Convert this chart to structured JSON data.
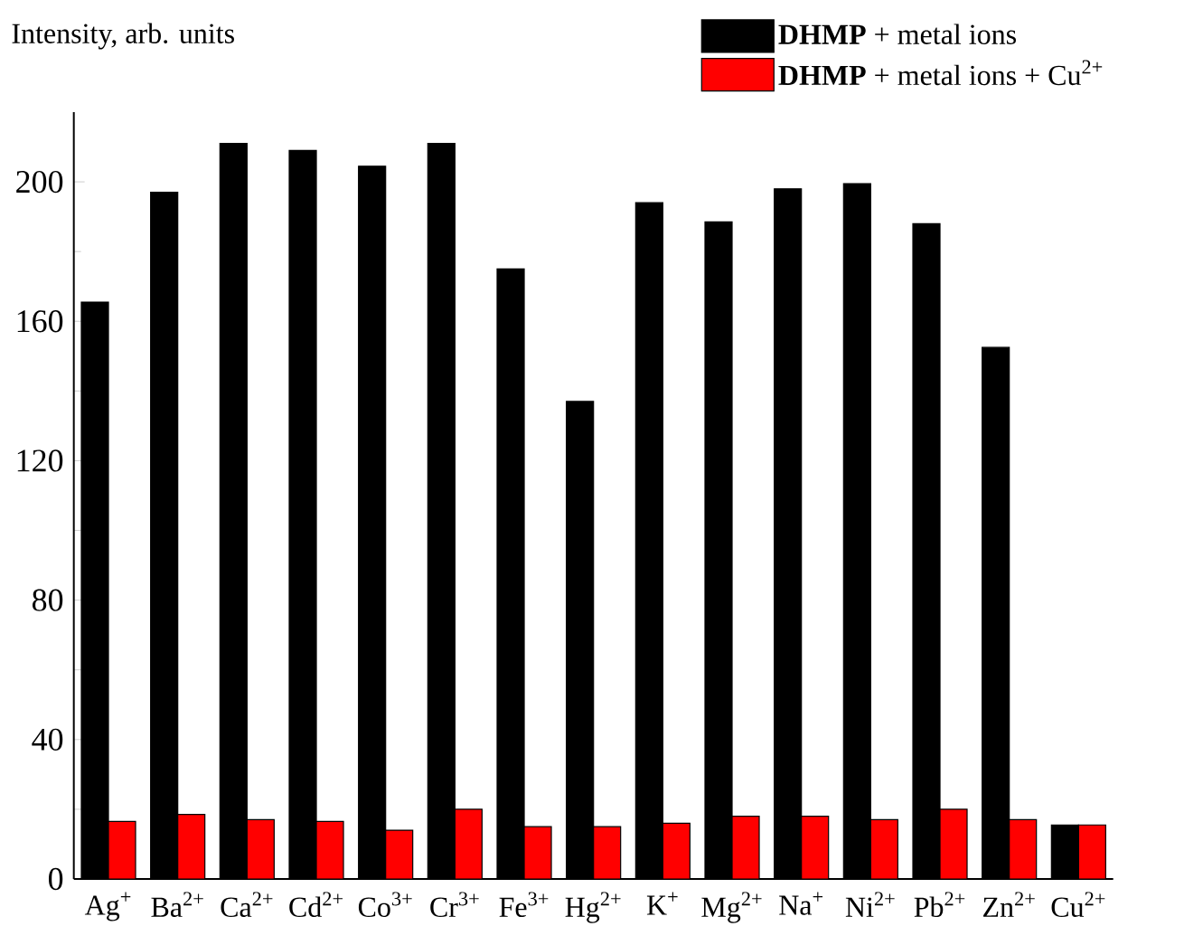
{
  "chart_data": {
    "type": "bar",
    "ylabel": "Intensity, arb. units",
    "categories": [
      "Ag$^{+}$",
      "Ba$^{2+}$",
      "Ca$^{2+}$",
      "Cd$^{2+}$",
      "Co$^{3+}$",
      "Cr$^{3+}$",
      "Fe$^{3+}$",
      "Hg$^{2+}$",
      "K$^{+}$",
      "Mg$^{2+}$",
      "Na$^{+}$",
      "Ni$^{2+}$",
      "Pb$^{2+}$",
      "Zn$^{2+}$",
      "Cu$^{2+}$"
    ],
    "series": [
      {
        "name": "**DHMP** + metal ions",
        "color": "#000000",
        "values": [
          165.5,
          197,
          211,
          209,
          204.5,
          211,
          175,
          137,
          194,
          188.5,
          198,
          199.5,
          188,
          152.5,
          15.5
        ]
      },
      {
        "name": "**DHMP** + metal ions + Cu$^{2+}$",
        "color": "#ff0000",
        "values": [
          16.5,
          18.5,
          17,
          16.5,
          14,
          20,
          15,
          15,
          16,
          18,
          18,
          17,
          20,
          17,
          15.5
        ]
      }
    ],
    "ylim": [
      0,
      220
    ],
    "yticks": [
      0,
      40,
      80,
      120,
      160,
      200
    ],
    "grid": false,
    "legend": "top right"
  }
}
